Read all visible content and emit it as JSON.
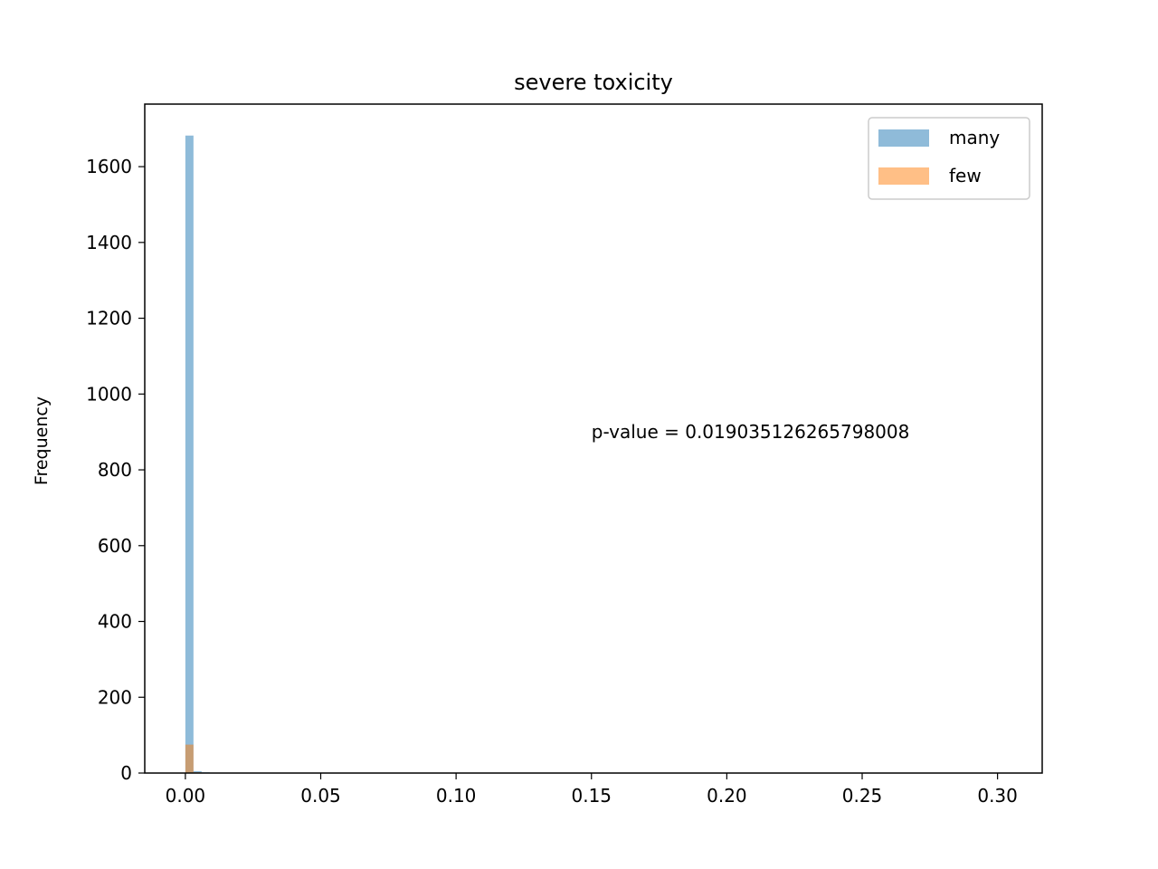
{
  "chart_data": {
    "type": "histogram",
    "title": "severe toxicity",
    "xlabel": "",
    "ylabel": "Frequency",
    "xlim": [
      -0.015,
      0.3165
    ],
    "ylim": [
      0,
      1765
    ],
    "x_ticks": [
      0.0,
      0.05,
      0.1,
      0.15,
      0.2,
      0.25,
      0.3
    ],
    "x_tick_labels": [
      "0.00",
      "0.05",
      "0.10",
      "0.15",
      "0.20",
      "0.25",
      "0.30"
    ],
    "y_ticks": [
      0,
      200,
      400,
      600,
      800,
      1000,
      1200,
      1400,
      1600
    ],
    "y_tick_labels": [
      "0",
      "200",
      "400",
      "600",
      "800",
      "1000",
      "1200",
      "1400",
      "1600"
    ],
    "grid": false,
    "legend_position": "top-right",
    "series": [
      {
        "name": "many",
        "color": "#1f77b4",
        "opacity": 0.5,
        "bins": [
          {
            "x0": 0.0,
            "x1": 0.003,
            "count": 1682
          },
          {
            "x0": 0.003,
            "x1": 0.006,
            "count": 5
          },
          {
            "x0": 0.006,
            "x1": 0.009,
            "count": 2
          }
        ]
      },
      {
        "name": "few",
        "color": "#ff7f0e",
        "opacity": 0.5,
        "bins": [
          {
            "x0": 0.0,
            "x1": 0.003,
            "count": 75
          },
          {
            "x0": 0.003,
            "x1": 0.006,
            "count": 2
          }
        ]
      }
    ],
    "annotation": {
      "text": "p-value = 0.019035126265798008",
      "x": 0.15,
      "y": 900
    }
  }
}
